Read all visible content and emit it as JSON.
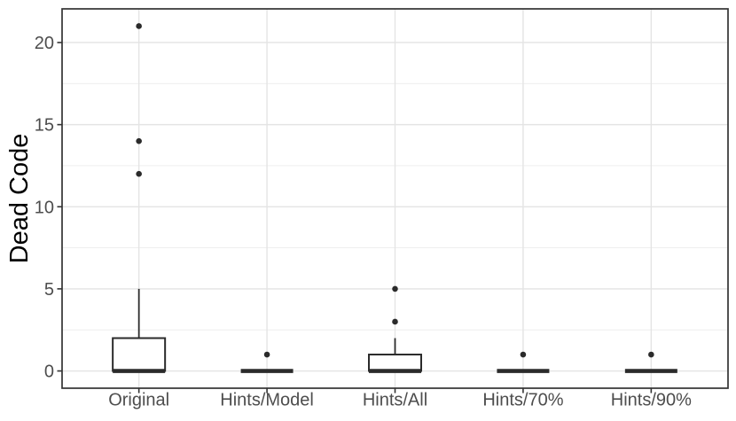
{
  "chart_data": {
    "type": "boxplot",
    "title": "",
    "xlabel": "",
    "ylabel": "Dead Code",
    "categories": [
      "Original",
      "Hints/Model",
      "Hints/All",
      "Hints/70%",
      "Hints/90%"
    ],
    "y_ticks": [
      0,
      5,
      10,
      15,
      20
    ],
    "y_minor_ticks": [
      2.5,
      7.5,
      12.5,
      17.5
    ],
    "ylim": [
      -1.05,
      22.05
    ],
    "grid": "major-and-minor",
    "legend": "none",
    "series": [
      {
        "category": "Original",
        "min": 0,
        "q1": 0,
        "median": 0,
        "q3": 2,
        "max": 5,
        "outliers": [
          12,
          14,
          21
        ]
      },
      {
        "category": "Hints/Model",
        "min": 0,
        "q1": 0,
        "median": 0,
        "q3": 0,
        "max": 0,
        "outliers": [
          1
        ]
      },
      {
        "category": "Hints/All",
        "min": 0,
        "q1": 0,
        "median": 0,
        "q3": 1,
        "max": 2,
        "outliers": [
          3,
          5
        ]
      },
      {
        "category": "Hints/70%",
        "min": 0,
        "q1": 0,
        "median": 0,
        "q3": 0,
        "max": 0,
        "outliers": [
          1
        ]
      },
      {
        "category": "Hints/90%",
        "min": 0,
        "q1": 0,
        "median": 0,
        "q3": 0,
        "max": 0,
        "outliers": [
          1
        ]
      }
    ],
    "colors": {
      "panel_border": "#333333",
      "grid_major": "#e4e4e4",
      "grid_minor": "#ebebeb",
      "box_stroke": "#2b2b2b",
      "box_fill": "#ffffff",
      "outlier": "#2b2b2b",
      "tick_mark": "#333333",
      "tick_text": "#4d4d4d",
      "axis_title_text": "#000000",
      "background": "#ffffff"
    }
  }
}
